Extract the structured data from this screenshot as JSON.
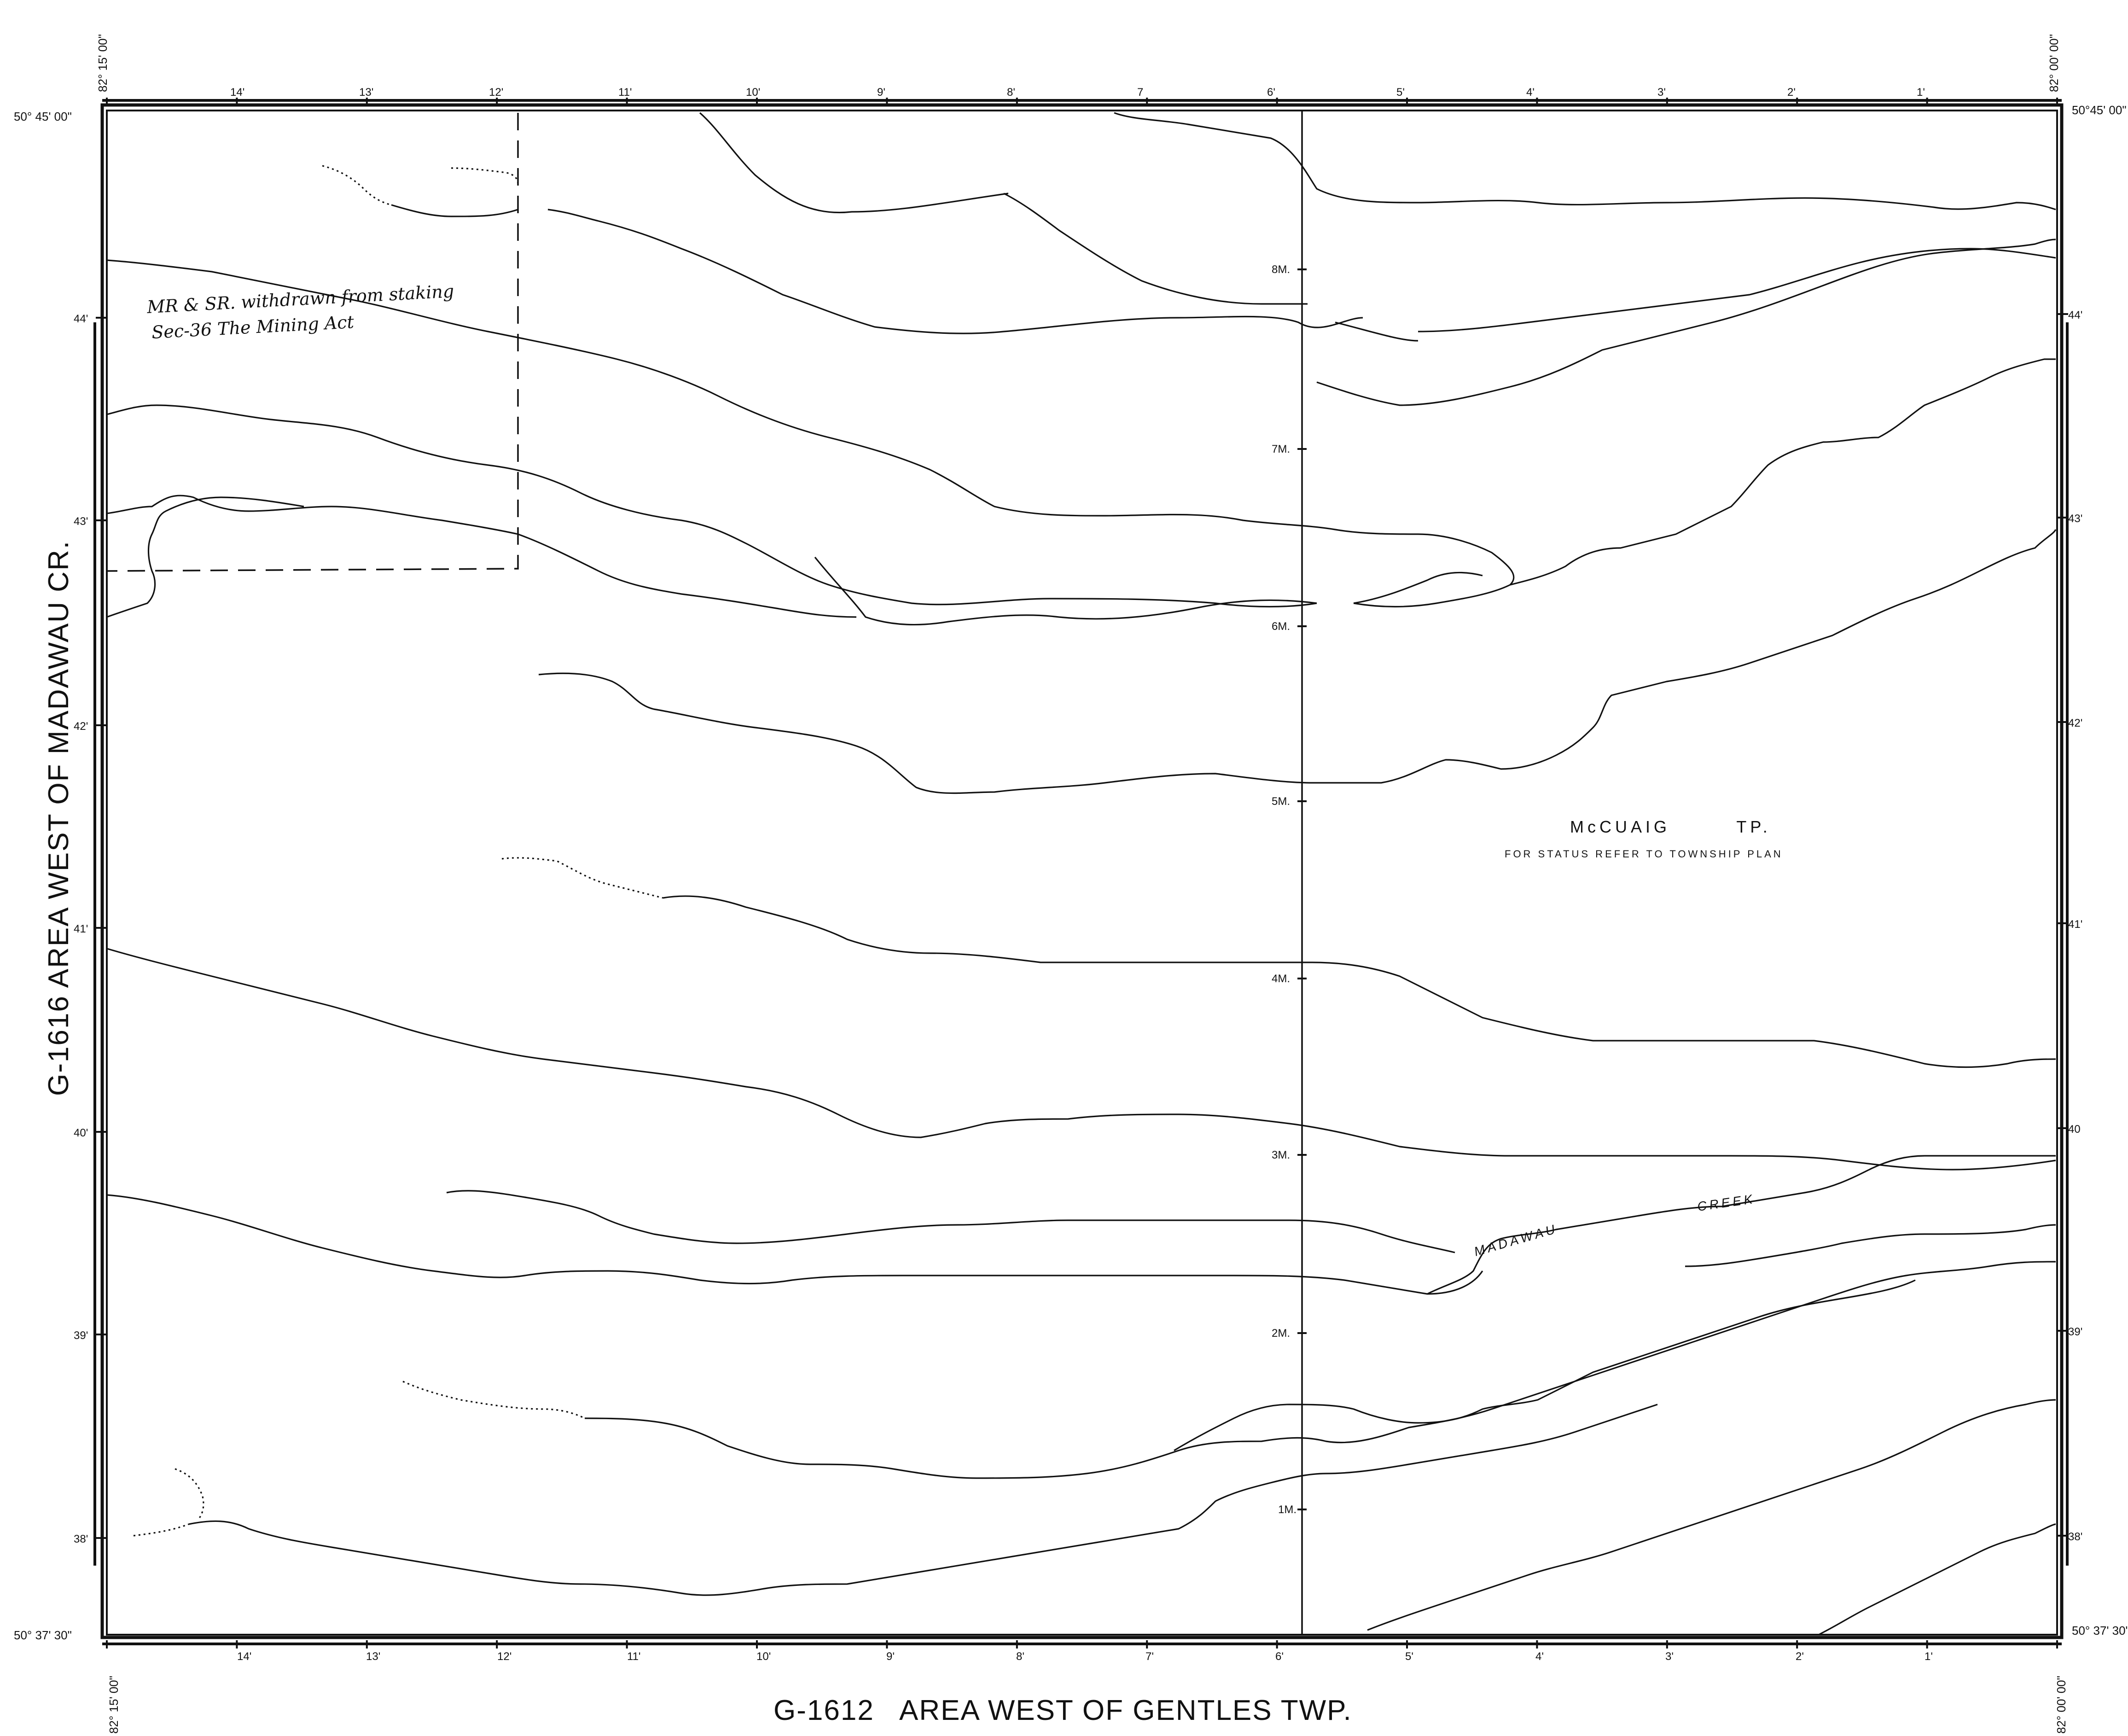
{
  "title_left": "G-1616 AREA WEST OF MADAWAU CR.",
  "title_bottom": "G-1612   AREA WEST OF GENTLES TWP.",
  "corner_labels": {
    "top_left_lat": "50° 45' 00\"",
    "top_right_lat": "50°45' 00\"",
    "bottom_left_lat": "50° 37' 30\"",
    "bottom_right_lat": "50° 37' 30\"",
    "top_left_lon": "82° 15' 00\"",
    "top_right_lon": "82° 00' 00\"",
    "bottom_left_lon": "82° 15' 00\"",
    "bottom_right_lon": "82° 00' 00\""
  },
  "top_scale": [
    "14'",
    "13'",
    "12'",
    "11'",
    "10'",
    "9'",
    "8'",
    "7",
    "6'",
    "5'",
    "4'",
    "3'",
    "2'",
    "1'"
  ],
  "bottom_scale": [
    "14'",
    "13'",
    "12'",
    "11'",
    "10'",
    "9'",
    "8'",
    "7'",
    "6'",
    "5'",
    "4'",
    "3'",
    "2'",
    "1'"
  ],
  "left_lat_labels": [
    "44'",
    "43'",
    "42'",
    "41'",
    "40'",
    "39'",
    "38'"
  ],
  "right_lat_labels": [
    "44'",
    "43'",
    "42'",
    "41'",
    "40",
    "39'",
    "38'"
  ],
  "mile_labels": [
    "8M.",
    "7M.",
    "6M.",
    "5M.",
    "4M.",
    "3M.",
    "2M.",
    "1M."
  ],
  "township_name": "McCUAIG        TP.",
  "township_status": "FOR STATUS REFER TO TOWNSHIP PLAN",
  "creek_labels": [
    "MADAWAU",
    "CREEK"
  ],
  "handwritten_note": [
    "MR & SR. withdrawn from staking",
    "Sec-36 The Mining Act"
  ]
}
